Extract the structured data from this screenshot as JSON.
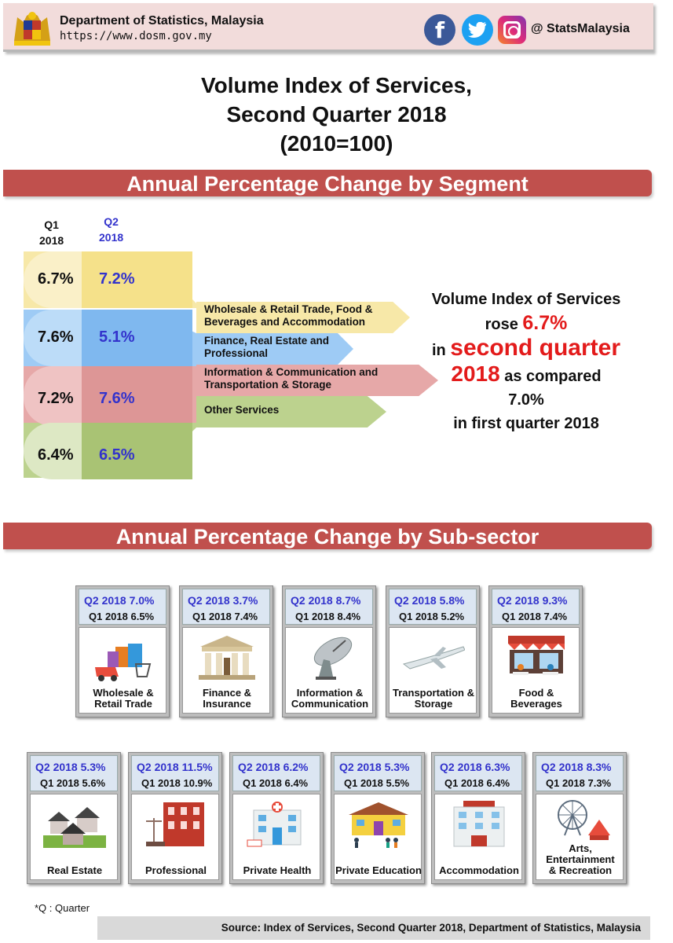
{
  "header": {
    "dept": "Department of Statistics, Malaysia",
    "url": "https://www.dosm.gov.my",
    "handle": "@ StatsMalaysia",
    "fb": "f"
  },
  "title": {
    "line1": "Volume Index of Services,",
    "line2": "Second Quarter 2018",
    "line3": "(2010=100)"
  },
  "segment": {
    "band": "Annual Percentage Change by Segment",
    "q1_head": "Q1",
    "q1_year": "2018",
    "q2_head": "Q2",
    "q2_year": "2018",
    "rows": [
      {
        "q1": "6.7%",
        "q2": "7.2%",
        "label": "Wholesale & Retail Trade, Food & Beverages and Accommodation",
        "color": "#f7e8a8"
      },
      {
        "q1": "7.6%",
        "q2": "5.1%",
        "label": "Finance, Real Estate and Professional",
        "color": "#9ecbf5"
      },
      {
        "q1": "7.2%",
        "q2": "7.6%",
        "label": "Information & Communication and Transportation & Storage",
        "color": "#e6a8a8"
      },
      {
        "q1": "6.4%",
        "q2": "6.5%",
        "label": "Other Services",
        "color": "#bcd28e"
      }
    ],
    "summary": {
      "l1": "Volume Index of Services",
      "l2a": "rose ",
      "l2b": "6.7%",
      "l3a": "in ",
      "l3b": "second quarter",
      "l4a": "2018",
      "l4b": " as compared",
      "l5": "7.0%",
      "l6": "in first quarter 2018"
    }
  },
  "subsector": {
    "band": "Annual Percentage Change  by Sub-sector",
    "row1": [
      {
        "q2": "Q2 2018  7.0%",
        "q1": "Q1 2018  6.5%",
        "label": "Wholesale & Retail Trade",
        "icon": "shopping-icon"
      },
      {
        "q2": "Q2 2018  3.7%",
        "q1": "Q1 2018   7.4%",
        "label": "Finance & Insurance",
        "icon": "bank-icon"
      },
      {
        "q2": "Q2 2018   8.7%",
        "q1": "Q1 2018   8.4%",
        "label": "Information & Communication",
        "icon": "satellite-dish-icon"
      },
      {
        "q2": "Q2 2018    5.8%",
        "q1": "Q1 2018   5.2%",
        "label": "Transportation & Storage",
        "icon": "airplane-icon"
      },
      {
        "q2": "Q2 2018  9.3%",
        "q1": "Q1 2018   7.4%",
        "label": "Food & Beverages",
        "icon": "cafe-icon"
      }
    ],
    "row2": [
      {
        "q2": "Q2 2018  5.3%",
        "q1": "Q1 2018  5.6%",
        "label": "Real Estate",
        "icon": "houses-icon"
      },
      {
        "q2": "Q2 2018  11.5%",
        "q1": "Q1 2018  10.9%",
        "label": "Professional",
        "icon": "law-building-icon"
      },
      {
        "q2": "Q2 2018  6.2%",
        "q1": "Q1 2018  6.4%",
        "label": "Private Health",
        "icon": "hospital-icon"
      },
      {
        "q2": "Q2 2018  5.3%",
        "q1": "Q1 2018  5.5%",
        "label": "Private Education",
        "icon": "school-icon"
      },
      {
        "q2": "Q2 2018     6.3%",
        "q1": "Q1 2018      6.4%",
        "label": "Accommodation",
        "icon": "hotel-icon"
      },
      {
        "q2": "Q2 2018    8.3%",
        "q1": "Q1 2018   7.3%",
        "label": "Arts, Entertainment & Recreation",
        "icon": "ferris-wheel-icon"
      }
    ]
  },
  "footer": {
    "note": "*Q    : Quarter",
    "source": "Source: Index of Services, Second Quarter 2018, Department of Statistics, Malaysia"
  }
}
